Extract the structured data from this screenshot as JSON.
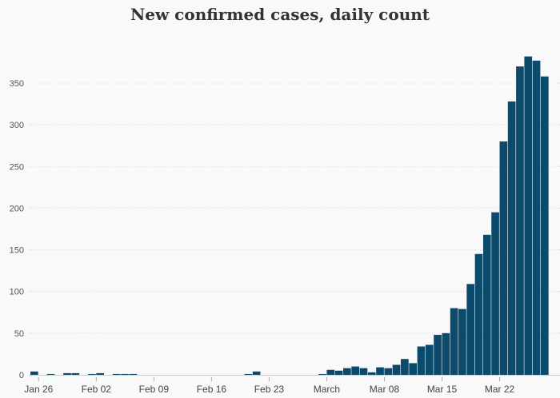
{
  "chart_data": {
    "type": "bar",
    "title": "New confirmed cases, daily count",
    "xlabel": "",
    "ylabel": "",
    "ylim": [
      0,
      390
    ],
    "yticks": [
      0,
      50,
      100,
      150,
      200,
      250,
      300,
      350
    ],
    "grid": true,
    "start_date": "2020-01-25",
    "xtick_labels": [
      {
        "day_index": 1,
        "label": "Jan 26"
      },
      {
        "day_index": 8,
        "label": "Feb 02"
      },
      {
        "day_index": 15,
        "label": "Feb 09"
      },
      {
        "day_index": 22,
        "label": "Feb 16"
      },
      {
        "day_index": 29,
        "label": "Feb 23"
      },
      {
        "day_index": 36,
        "label": "March"
      },
      {
        "day_index": 43,
        "label": "Mar 08"
      },
      {
        "day_index": 50,
        "label": "Mar 15"
      },
      {
        "day_index": 57,
        "label": "Mar 22"
      }
    ],
    "values": [
      4,
      0,
      1,
      0,
      2,
      2,
      0,
      1,
      2,
      0,
      1,
      1,
      1,
      0,
      0,
      0,
      0,
      0,
      0,
      0,
      0,
      0,
      0,
      0,
      0,
      0,
      1,
      4,
      0,
      0,
      0,
      0,
      0,
      0,
      0,
      1,
      6,
      5,
      8,
      10,
      8,
      3,
      9,
      8,
      12,
      19,
      14,
      34,
      36,
      48,
      50,
      80,
      79,
      109,
      145,
      168,
      195,
      280,
      328,
      370,
      382,
      377,
      358
    ],
    "bar_color": "#0b4a6b"
  }
}
